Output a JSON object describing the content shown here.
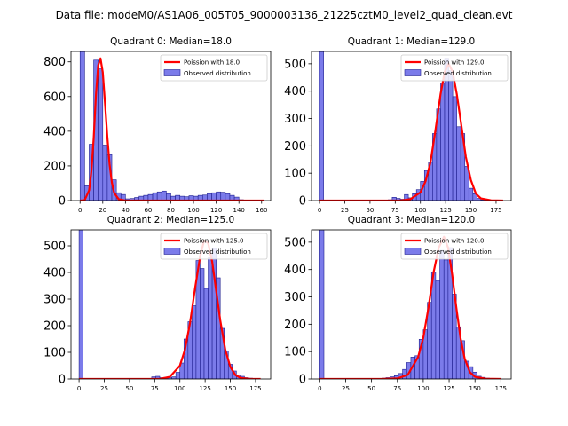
{
  "figure_title": "Data file: modeM0/AS1A06_005T05_9000003136_21225cztM0_level2_quad_clean.evt",
  "colors": {
    "poisson_line": "#ff0000",
    "bar_fill": "#7b7bea",
    "bar_edge": "#1f1f8f"
  },
  "chart_data": [
    {
      "type": "bar",
      "title": "Quadrant 0: Median=18.0",
      "xlim": [
        -8,
        168
      ],
      "ylim": [
        0,
        860
      ],
      "xticks": [
        0,
        20,
        40,
        60,
        80,
        100,
        120,
        140,
        160
      ],
      "yticks": [
        0,
        200,
        400,
        600,
        800
      ],
      "legend": {
        "poisson": "Poission with 18.0",
        "observed": "Observed distribution",
        "position": "top-right"
      },
      "bin_width": 4,
      "hist": {
        "x": [
          0,
          4,
          8,
          12,
          16,
          20,
          24,
          28,
          32,
          36,
          40,
          44,
          48,
          52,
          56,
          60,
          64,
          68,
          72,
          76,
          80,
          84,
          88,
          92,
          96,
          100,
          104,
          108,
          112,
          116,
          120,
          124,
          128,
          132,
          136,
          140,
          144,
          148,
          152,
          156,
          160
        ],
        "counts": [
          860,
          85,
          325,
          810,
          760,
          320,
          265,
          120,
          45,
          35,
          10,
          12,
          18,
          25,
          30,
          35,
          45,
          50,
          55,
          40,
          25,
          30,
          25,
          22,
          28,
          25,
          30,
          32,
          40,
          45,
          50,
          48,
          40,
          30,
          20,
          5,
          3,
          2,
          1,
          0,
          0
        ]
      },
      "poisson": {
        "x": [
          0,
          4,
          8,
          10,
          12,
          14,
          16,
          18,
          20,
          22,
          24,
          26,
          28,
          30,
          34,
          40,
          60,
          100,
          162
        ],
        "y": [
          0,
          2,
          60,
          170,
          360,
          610,
          780,
          820,
          740,
          560,
          370,
          210,
          105,
          45,
          8,
          0,
          0,
          0,
          0
        ]
      }
    },
    {
      "type": "bar",
      "title": "Quadrant 1: Median=129.0",
      "xlim": [
        -8,
        190
      ],
      "ylim": [
        0,
        545
      ],
      "xticks": [
        0,
        25,
        50,
        75,
        100,
        125,
        150,
        175
      ],
      "yticks": [
        0,
        100,
        200,
        300,
        400,
        500
      ],
      "legend": {
        "poisson": "Poission with 129.0",
        "observed": "Observed distribution",
        "position": "top-right"
      },
      "bin_width": 4,
      "hist": {
        "x": [
          0,
          4,
          56,
          60,
          64,
          68,
          72,
          76,
          80,
          84,
          88,
          92,
          96,
          100,
          104,
          108,
          112,
          116,
          120,
          124,
          128,
          132,
          136,
          140,
          144,
          148,
          152,
          156,
          160,
          164,
          168,
          172,
          176
        ],
        "counts": [
          545,
          0,
          0,
          0,
          0,
          3,
          12,
          8,
          5,
          22,
          10,
          25,
          40,
          70,
          110,
          140,
          245,
          335,
          430,
          520,
          475,
          380,
          270,
          245,
          125,
          45,
          25,
          8,
          3,
          1,
          0,
          0,
          0
        ]
      },
      "poisson": {
        "x": [
          0,
          60,
          80,
          90,
          100,
          105,
          110,
          115,
          120,
          124,
          128,
          132,
          136,
          140,
          145,
          150,
          155,
          160,
          170,
          182
        ],
        "y": [
          0,
          0,
          0,
          5,
          30,
          70,
          140,
          260,
          390,
          470,
          500,
          470,
          390,
          290,
          160,
          75,
          25,
          8,
          1,
          0
        ]
      }
    },
    {
      "type": "bar",
      "title": "Quadrant 2: Median=125.0",
      "xlim": [
        -8,
        190
      ],
      "ylim": [
        0,
        560
      ],
      "xticks": [
        0,
        25,
        50,
        75,
        100,
        125,
        150,
        175
      ],
      "yticks": [
        0,
        100,
        200,
        300,
        400,
        500
      ],
      "legend": {
        "poisson": "Poission with 125.0",
        "observed": "Observed distribution",
        "position": "top-right"
      },
      "bin_width": 4,
      "hist": {
        "x": [
          0,
          4,
          72,
          76,
          80,
          84,
          88,
          92,
          96,
          100,
          104,
          108,
          112,
          116,
          120,
          124,
          128,
          132,
          136,
          140,
          144,
          148,
          152,
          156,
          160,
          164,
          168,
          172
        ],
        "counts": [
          560,
          0,
          8,
          10,
          5,
          6,
          5,
          8,
          25,
          60,
          150,
          215,
          275,
          445,
          415,
          340,
          455,
          490,
          380,
          190,
          105,
          55,
          30,
          15,
          10,
          5,
          3,
          0
        ]
      },
      "poisson": {
        "x": [
          0,
          60,
          80,
          90,
          100,
          105,
          110,
          115,
          120,
          124,
          128,
          132,
          136,
          140,
          145,
          150,
          155,
          160,
          170,
          180
        ],
        "y": [
          0,
          0,
          0,
          8,
          50,
          110,
          210,
          340,
          460,
          520,
          510,
          440,
          330,
          220,
          110,
          45,
          15,
          4,
          0,
          0
        ]
      }
    },
    {
      "type": "bar",
      "title": "Quadrant 3: Median=120.0",
      "xlim": [
        -8,
        185
      ],
      "ylim": [
        0,
        545
      ],
      "xticks": [
        0,
        25,
        50,
        75,
        100,
        125,
        150,
        175
      ],
      "yticks": [
        0,
        100,
        200,
        300,
        400,
        500
      ],
      "legend": {
        "poisson": "Poission with 120.0",
        "observed": "Observed distribution",
        "position": "top-right"
      },
      "bin_width": 4,
      "hist": {
        "x": [
          0,
          4,
          60,
          64,
          68,
          72,
          76,
          80,
          84,
          88,
          92,
          96,
          100,
          104,
          108,
          112,
          116,
          120,
          124,
          128,
          132,
          136,
          140,
          144,
          148,
          152,
          156,
          160,
          164,
          168
        ],
        "counts": [
          545,
          0,
          3,
          5,
          8,
          12,
          20,
          35,
          60,
          80,
          85,
          145,
          180,
          280,
          390,
          360,
          470,
          435,
          480,
          310,
          190,
          140,
          65,
          45,
          25,
          10,
          6,
          3,
          1,
          0
        ]
      },
      "poisson": {
        "x": [
          0,
          60,
          75,
          85,
          95,
          100,
          105,
          110,
          115,
          120,
          124,
          128,
          132,
          136,
          140,
          145,
          150,
          160,
          175
        ],
        "y": [
          0,
          0,
          2,
          15,
          80,
          150,
          260,
          390,
          480,
          520,
          480,
          380,
          260,
          150,
          75,
          25,
          8,
          1,
          0
        ]
      }
    }
  ]
}
